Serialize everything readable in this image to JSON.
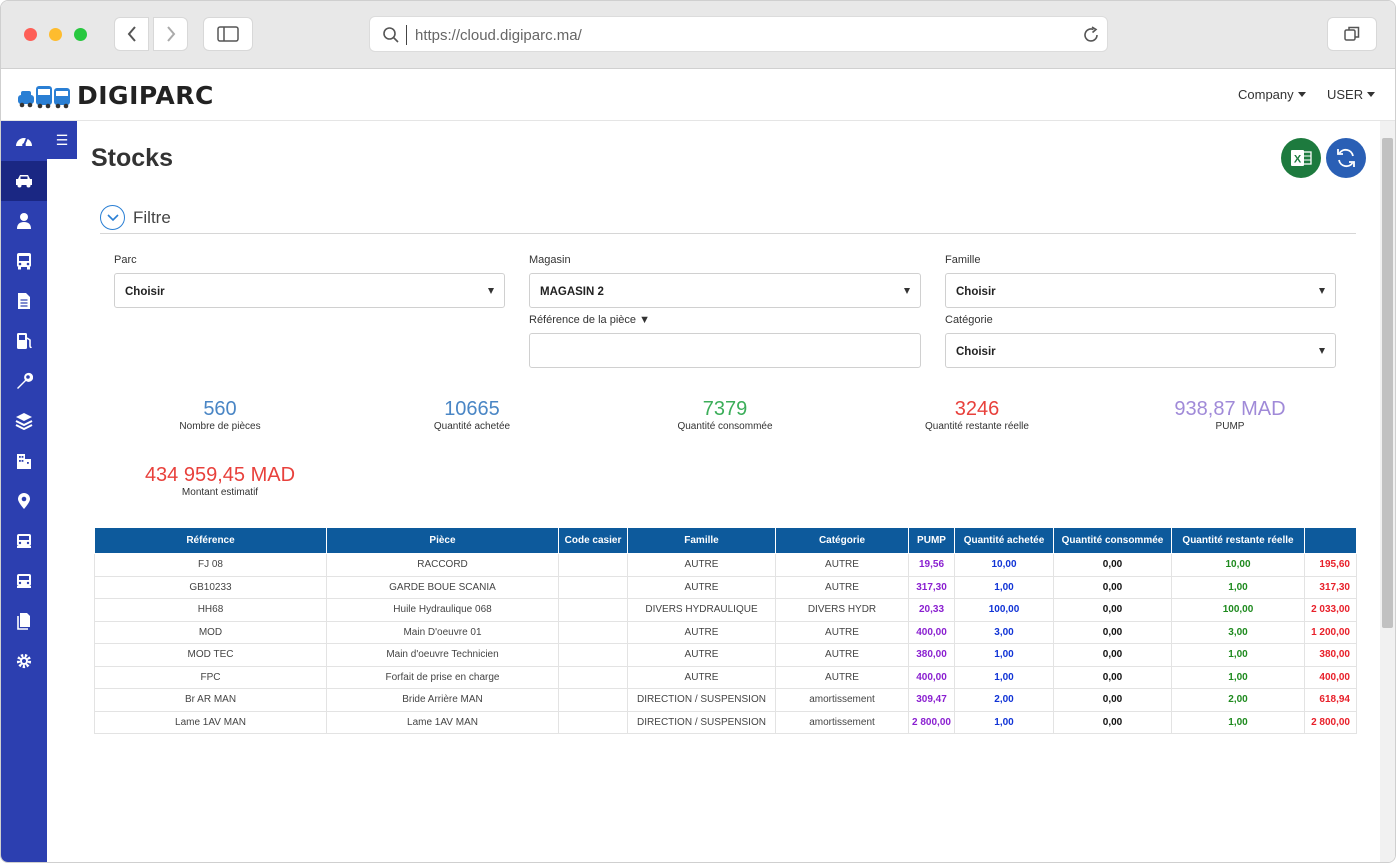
{
  "browser": {
    "url": "https://cloud.digiparc.ma/"
  },
  "app": {
    "logo_text": "DIGIPARC",
    "company_menu": "Company",
    "user_menu": "USER",
    "toggle_glyph": "☰"
  },
  "sidebar": {
    "items": [
      {
        "icon": "dashboard-icon"
      },
      {
        "icon": "car-icon"
      },
      {
        "icon": "user-icon"
      },
      {
        "icon": "bus-icon"
      },
      {
        "icon": "document-icon"
      },
      {
        "icon": "fuel-icon"
      },
      {
        "icon": "wrench-icon"
      },
      {
        "icon": "layers-icon"
      },
      {
        "icon": "building-icon"
      },
      {
        "icon": "location-icon"
      },
      {
        "icon": "vehicle-icon"
      },
      {
        "icon": "vehicle-alt-icon"
      },
      {
        "icon": "file-icon"
      },
      {
        "icon": "settings-icon"
      }
    ]
  },
  "page": {
    "title": "Stocks"
  },
  "filter": {
    "title": "Filtre",
    "parc": {
      "label": "Parc",
      "value": "Choisir"
    },
    "magasin": {
      "label": "Magasin",
      "value": "MAGASIN 2"
    },
    "famille": {
      "label": "Famille",
      "value": "Choisir"
    },
    "reference": {
      "label": "Référence de la pièce ▼",
      "value": ""
    },
    "categorie": {
      "label": "Catégorie",
      "value": "Choisir"
    }
  },
  "stats": [
    {
      "value": "560",
      "label": "Nombre de pièces",
      "color": "#4a86c5"
    },
    {
      "value": "10665",
      "label": "Quantité achetée",
      "color": "#4a86c5"
    },
    {
      "value": "7379",
      "label": "Quantité consommée",
      "color": "#3cae5a"
    },
    {
      "value": "3246",
      "label": "Quantité restante réelle",
      "color": "#e8413c"
    },
    {
      "value": "938,87 MAD",
      "label": "PUMP",
      "color": "#a08ad8"
    },
    {
      "value": "434 959,45 MAD",
      "label": "Montant estimatif",
      "color": "#e8413c"
    }
  ],
  "table": {
    "headers": [
      "Référence",
      "Pièce",
      "Code casier",
      "Famille",
      "Catégorie",
      "PUMP",
      "Quantité achetée",
      "Quantité consommée",
      "Quantité restante réelle",
      ""
    ],
    "rows": [
      [
        "FJ 08",
        "RACCORD",
        "",
        "AUTRE",
        "AUTRE",
        "19,56",
        "10,00",
        "0,00",
        "10,00",
        "195,60"
      ],
      [
        "GB10233",
        "GARDE BOUE SCANIA",
        "",
        "AUTRE",
        "AUTRE",
        "317,30",
        "1,00",
        "0,00",
        "1,00",
        "317,30"
      ],
      [
        "HH68",
        "Huile Hydraulique 068",
        "",
        "DIVERS HYDRAULIQUE",
        "DIVERS HYDR",
        "20,33",
        "100,00",
        "0,00",
        "100,00",
        "2 033,00"
      ],
      [
        "MOD",
        "Main D'oeuvre 01",
        "",
        "AUTRE",
        "AUTRE",
        "400,00",
        "3,00",
        "0,00",
        "3,00",
        "1 200,00"
      ],
      [
        "MOD TEC",
        "Main d'oeuvre Technicien",
        "",
        "AUTRE",
        "AUTRE",
        "380,00",
        "1,00",
        "0,00",
        "1,00",
        "380,00"
      ],
      [
        "FPC",
        "Forfait de prise en charge",
        "",
        "AUTRE",
        "AUTRE",
        "400,00",
        "1,00",
        "0,00",
        "1,00",
        "400,00"
      ],
      [
        "Br AR MAN",
        "Bride Arrière MAN",
        "",
        "DIRECTION / SUSPENSION",
        "amortissement",
        "309,47",
        "2,00",
        "0,00",
        "2,00",
        "618,94"
      ],
      [
        "Lame 1AV MAN",
        "Lame 1AV MAN",
        "",
        "DIRECTION / SUSPENSION",
        "amortissement",
        "2 800,00",
        "1,00",
        "0,00",
        "1,00",
        "2 800,00"
      ]
    ]
  }
}
